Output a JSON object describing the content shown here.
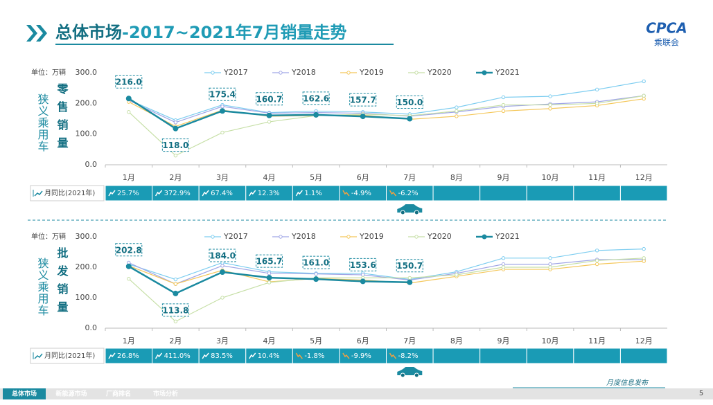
{
  "header": {
    "title_main": "总体市场",
    "title_rest": "-2017~2021年7月销量走势",
    "logo": "CPCA",
    "logo_sub": "乘联会"
  },
  "chart_data": [
    {
      "type": "line",
      "side_label": "狭义乘用车",
      "title": "零售销量",
      "unit_label": "单位：万辆",
      "categories": [
        "1月",
        "2月",
        "3月",
        "4月",
        "5月",
        "6月",
        "7月",
        "8月",
        "9月",
        "10月",
        "11月",
        "12月"
      ],
      "ylim": [
        0,
        300
      ],
      "yticks": [
        {
          "value": 0,
          "label": "0.0"
        },
        {
          "value": 100,
          "label": "100.0"
        },
        {
          "value": 200,
          "label": "200.0"
        },
        {
          "value": 300,
          "label": "300.0"
        }
      ],
      "grid": false,
      "series": [
        {
          "name": "Y2017",
          "color": "#7dcdf0",
          "values": [
            212,
            145,
            195,
            170,
            175,
            172,
            165,
            187,
            220,
            223,
            245,
            272
          ]
        },
        {
          "name": "Y2018",
          "color": "#a0a6e6",
          "values": [
            210,
            138,
            190,
            168,
            170,
            168,
            158,
            172,
            190,
            198,
            205,
            225
          ]
        },
        {
          "name": "Y2019",
          "color": "#f4c75a",
          "values": [
            205,
            125,
            178,
            158,
            160,
            162,
            148,
            158,
            175,
            183,
            193,
            215
          ]
        },
        {
          "name": "Y2020",
          "color": "#c6dfa6",
          "values": [
            172,
            30,
            105,
            140,
            160,
            165,
            160,
            175,
            195,
            195,
            200,
            225
          ]
        },
        {
          "name": "Y2021",
          "color": "#1b8aa0",
          "values": [
            216.0,
            118.0,
            175.4,
            160.7,
            162.6,
            157.7,
            150.0,
            null,
            null,
            null,
            null,
            null
          ],
          "value_labels": [
            "216.0",
            "118.0",
            "175.4",
            "160.7",
            "162.6",
            "157.7",
            "150.0",
            null,
            null,
            null,
            null,
            null
          ]
        }
      ],
      "yoy_label": "月同比(2021年)",
      "yoy": [
        "25.7%",
        "372.9%",
        "67.4%",
        "12.3%",
        "1.1%",
        "-4.9%",
        "-6.2%"
      ]
    },
    {
      "type": "line",
      "side_label": "狭义乘用车",
      "title": "批发销量",
      "unit_label": "单位：万辆",
      "categories": [
        "1月",
        "2月",
        "3月",
        "4月",
        "5月",
        "6月",
        "7月",
        "8月",
        "9月",
        "10月",
        "11月",
        "12月"
      ],
      "ylim": [
        0,
        300
      ],
      "yticks": [
        {
          "value": 0,
          "label": "0.0"
        },
        {
          "value": 100,
          "label": "100.0"
        },
        {
          "value": 200,
          "label": "200.0"
        },
        {
          "value": 300,
          "label": "300.0"
        }
      ],
      "grid": false,
      "series": [
        {
          "name": "Y2017",
          "color": "#7dcdf0",
          "values": [
            210,
            160,
            215,
            185,
            180,
            180,
            160,
            185,
            230,
            230,
            255,
            260
          ]
        },
        {
          "name": "Y2018",
          "color": "#a0a6e6",
          "values": [
            215,
            145,
            205,
            180,
            178,
            175,
            158,
            180,
            210,
            210,
            225,
            225
          ]
        },
        {
          "name": "Y2019",
          "color": "#f4c75a",
          "values": [
            205,
            145,
            190,
            152,
            163,
            158,
            148,
            170,
            193,
            193,
            210,
            220
          ]
        },
        {
          "name": "Y2020",
          "color": "#c6dfa6",
          "values": [
            162,
            22,
            100,
            150,
            165,
            165,
            165,
            175,
            200,
            200,
            222,
            230
          ]
        },
        {
          "name": "Y2021",
          "color": "#1b8aa0",
          "values": [
            202.8,
            113.8,
            184.0,
            165.7,
            161.0,
            153.6,
            150.7,
            null,
            null,
            null,
            null,
            null
          ],
          "value_labels": [
            "202.8",
            "113.8",
            "184.0",
            "165.7",
            "161.0",
            "153.6",
            "150.7",
            null,
            null,
            null,
            null,
            null
          ]
        }
      ],
      "yoy_label": "月同比(2021年)",
      "yoy": [
        "26.8%",
        "411.0%",
        "83.5%",
        "10.4%",
        "-1.8%",
        "-9.9%",
        "-8.2%"
      ]
    }
  ],
  "footer": {
    "tabs": [
      "总体市场",
      "新能源市场",
      "厂商排名",
      "市场分析"
    ],
    "note": "月度信息发布",
    "page": "5"
  }
}
